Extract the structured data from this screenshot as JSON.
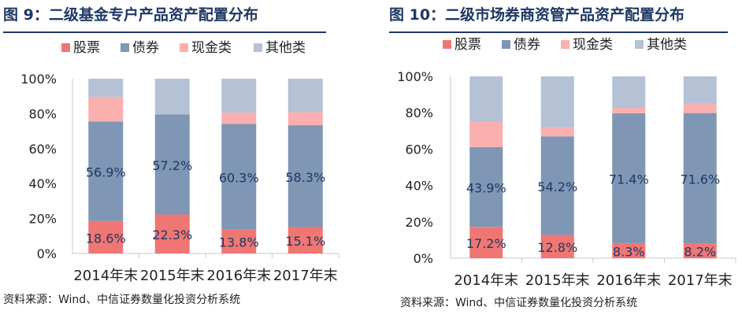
{
  "colors": {
    "股票": "#f07673",
    "债券": "#7f96b4",
    "现金类": "#f9b0ae",
    "其他类": "#b5c1d4",
    "title": "#1f3864",
    "label": "#1f3864"
  },
  "charts": [
    {
      "title": "图 9：二级基金专户产品资产配置分布",
      "source": "资料来源：Wind、中信证券数量化投资分析系统"
    },
    {
      "title": "图 10：二级市场券商资管产品资产配置分布",
      "source": "资料来源：Wind、中信证券数量化投资分析系统"
    }
  ],
  "chart_data": [
    {
      "type": "bar",
      "stacked": true,
      "title": "图 9：二级基金专户产品资产配置分布",
      "categories": [
        "2014年末",
        "2015年末",
        "2016年末",
        "2017年末"
      ],
      "ylim": [
        0,
        100
      ],
      "yticks": [
        "0%",
        "20%",
        "40%",
        "60%",
        "80%",
        "100%"
      ],
      "legend_position": "top",
      "series": [
        {
          "name": "股票",
          "values": [
            18.6,
            22.3,
            13.8,
            15.1
          ],
          "labels": [
            "18.6%",
            "22.3%",
            "13.8%",
            "15.1%"
          ]
        },
        {
          "name": "债券",
          "values": [
            56.9,
            57.2,
            60.3,
            58.3
          ],
          "labels": [
            "56.9%",
            "57.2%",
            "60.3%",
            "58.3%"
          ]
        },
        {
          "name": "现金类",
          "values": [
            14.0,
            0.0,
            6.5,
            7.5
          ]
        },
        {
          "name": "其他类",
          "values": [
            10.5,
            20.5,
            19.4,
            19.1
          ]
        }
      ]
    },
    {
      "type": "bar",
      "stacked": true,
      "title": "图 10：二级市场券商资管产品资产配置分布",
      "categories": [
        "2014年末",
        "2015年末",
        "2016年末",
        "2017年末"
      ],
      "ylim": [
        0,
        100
      ],
      "yticks": [
        "0%",
        "20%",
        "40%",
        "60%",
        "80%",
        "100%"
      ],
      "legend_position": "top",
      "series": [
        {
          "name": "股票",
          "values": [
            17.2,
            12.8,
            8.3,
            8.2
          ],
          "labels": [
            "17.2%",
            "12.8%",
            "8.3%",
            "8.2%"
          ]
        },
        {
          "name": "债券",
          "values": [
            43.9,
            54.2,
            71.4,
            71.6
          ],
          "labels": [
            "43.9%",
            "54.2%",
            "71.4%",
            "71.6%"
          ]
        },
        {
          "name": "现金类",
          "values": [
            14.0,
            5.0,
            3.0,
            5.5
          ]
        },
        {
          "name": "其他类",
          "values": [
            24.9,
            28.0,
            17.3,
            14.7
          ]
        }
      ]
    }
  ]
}
